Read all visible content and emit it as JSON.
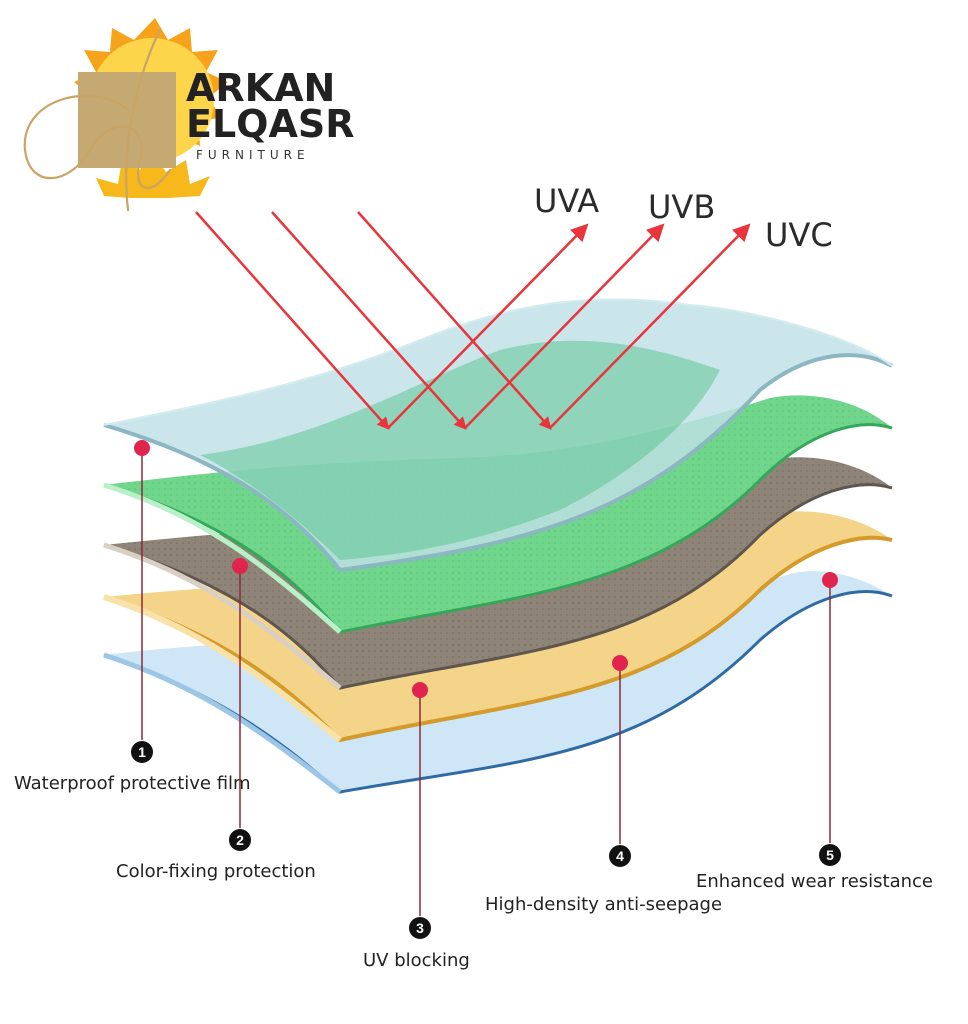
{
  "brand": {
    "line1": "ARKAN",
    "line2": "ELQASR",
    "line3": "FURNITURE"
  },
  "rays": [
    {
      "label": "UVA"
    },
    {
      "label": "UVB"
    },
    {
      "label": "UVC"
    }
  ],
  "layers": [
    {
      "number": "1",
      "label": "Waterproof protective film",
      "color": "#bfe0e6"
    },
    {
      "number": "2",
      "label": "Color-fixing protection",
      "color": "#6fd68c"
    },
    {
      "number": "3",
      "label": "UV blocking",
      "color": "#8f8478"
    },
    {
      "number": "4",
      "label": "High-density anti-seepage",
      "color": "#f4d488"
    },
    {
      "number": "5",
      "label": "Enhanced wear resistance",
      "color": "#cfe6f7"
    }
  ],
  "colors": {
    "ray": "#e8343a",
    "marker": "#e0244e",
    "sun": "#f7a21b",
    "logo_square": "#c6a873"
  }
}
